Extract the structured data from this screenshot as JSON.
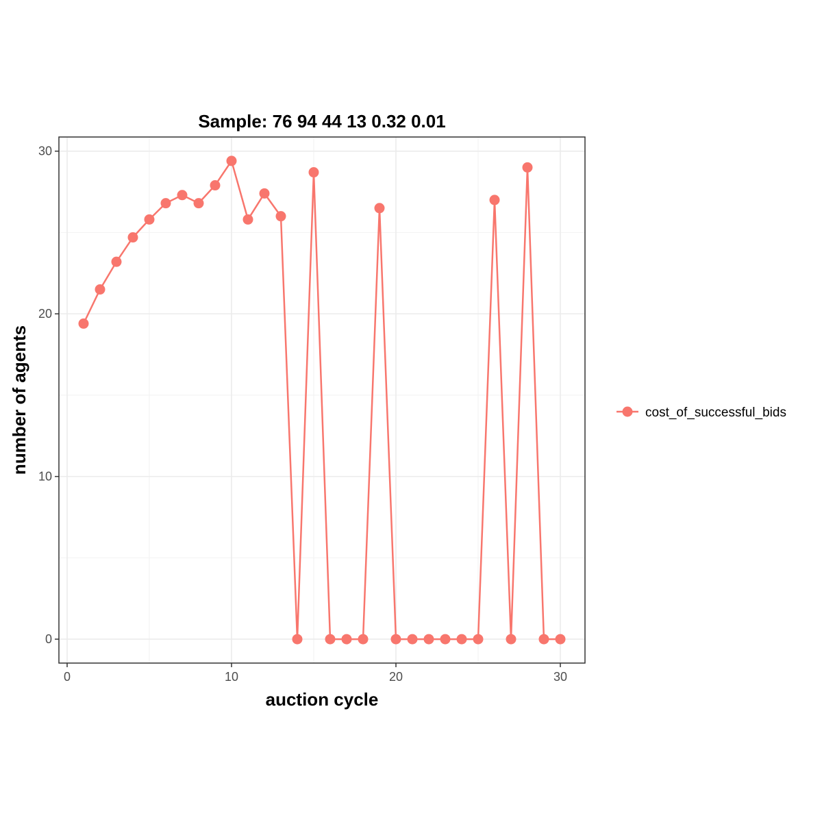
{
  "chart_data": {
    "type": "line",
    "title": "Sample: 76 94 44 13 0.32 0.01",
    "xlabel": "auction cycle",
    "ylabel": "number of agents",
    "xlim": [
      -0.5,
      31.5
    ],
    "ylim": [
      -1.47,
      30.87
    ],
    "x_ticks": [
      0,
      10,
      20,
      30
    ],
    "y_ticks": [
      0,
      10,
      20,
      30
    ],
    "x_minor": [
      5,
      15,
      25
    ],
    "y_minor": [
      5,
      15,
      25
    ],
    "grid": true,
    "legend_position": "right",
    "series": [
      {
        "name": "cost_of_successful_bids",
        "color": "#F8766D",
        "marker": "circle",
        "x": [
          1,
          2,
          3,
          4,
          5,
          6,
          7,
          8,
          9,
          10,
          11,
          12,
          13,
          14,
          15,
          16,
          17,
          18,
          19,
          20,
          21,
          22,
          23,
          24,
          25,
          26,
          27,
          28,
          29,
          30
        ],
        "values": [
          19.4,
          21.5,
          23.2,
          24.7,
          25.8,
          26.8,
          27.3,
          26.8,
          27.9,
          29.4,
          25.8,
          27.4,
          26.0,
          0,
          28.7,
          0,
          0,
          0,
          26.5,
          0,
          0,
          0,
          0,
          0,
          0,
          27.0,
          0,
          29.0,
          0,
          0
        ]
      }
    ]
  }
}
